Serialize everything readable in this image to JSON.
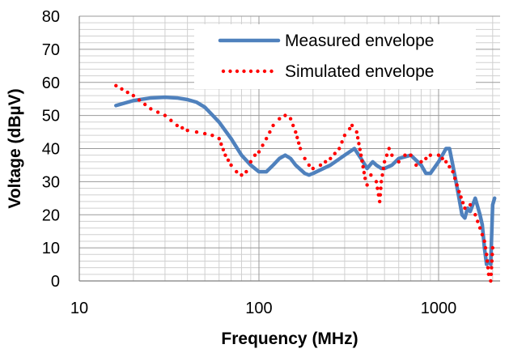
{
  "chart_data": {
    "type": "line",
    "title": "",
    "xlabel": "Frequency (MHz)",
    "ylabel": "Voltage (dBµV)",
    "x_scale": "log",
    "xlim": [
      10,
      2200
    ],
    "ylim": [
      0,
      80
    ],
    "x_major_ticks": [
      10,
      100,
      1000
    ],
    "x_tick_labels": [
      "10",
      "100",
      "1000"
    ],
    "y_ticks": [
      0,
      10,
      20,
      30,
      40,
      50,
      60,
      70,
      80
    ],
    "y_tick_labels": [
      "0",
      "10",
      "20",
      "30",
      "40",
      "50",
      "60",
      "70",
      "80"
    ],
    "grid": "major and minor",
    "legend_position": "top-right",
    "series": [
      {
        "name": "Measured envelope",
        "style": "solid",
        "color": "#4F81BD",
        "x": [
          16,
          20,
          25,
          30,
          35,
          40,
          45,
          50,
          60,
          70,
          80,
          90,
          100,
          110,
          120,
          130,
          140,
          150,
          160,
          180,
          190,
          200,
          250,
          300,
          340,
          370,
          400,
          430,
          450,
          480,
          500,
          550,
          600,
          700,
          800,
          850,
          900,
          1000,
          1050,
          1100,
          1150,
          1200,
          1250,
          1300,
          1350,
          1400,
          1450,
          1500,
          1600,
          1700,
          1750,
          1800,
          1850,
          1900,
          1950,
          2000,
          2050
        ],
        "y": [
          53,
          54.5,
          55.3,
          55.5,
          55.3,
          54.8,
          54,
          52.5,
          48,
          43,
          38,
          35,
          33,
          33,
          35,
          37,
          38,
          37,
          35,
          32.5,
          32,
          32.5,
          35,
          38,
          40,
          37,
          34,
          36,
          35,
          34,
          34,
          35,
          37,
          38,
          35,
          32.5,
          32.5,
          36,
          38,
          40,
          40,
          35,
          30,
          25,
          20,
          19,
          22,
          21,
          25,
          20,
          17,
          10,
          5,
          6,
          5,
          23,
          25
        ]
      },
      {
        "name": "Simulated envelope",
        "style": "dotted",
        "color": "#FF0000",
        "x": [
          16,
          20,
          25,
          30,
          35,
          40,
          45,
          50,
          55,
          60,
          65,
          70,
          75,
          80,
          85,
          90,
          95,
          100,
          110,
          120,
          130,
          140,
          150,
          160,
          170,
          180,
          190,
          200,
          220,
          250,
          280,
          300,
          320,
          330,
          350,
          370,
          390,
          400,
          420,
          450,
          470,
          480,
          500,
          530,
          550,
          600,
          650,
          700,
          750,
          800,
          850,
          900,
          1000,
          1050,
          1100,
          1200,
          1300,
          1400,
          1500,
          1600,
          1700,
          1800,
          1850,
          1900,
          1950,
          2000
        ],
        "y": [
          59,
          56,
          52,
          50,
          47,
          45.5,
          45,
          44.5,
          44,
          43,
          38,
          35,
          33,
          32,
          33,
          36,
          38,
          39,
          43,
          47,
          49,
          50,
          49,
          45,
          40,
          37,
          35,
          34,
          35,
          37,
          40,
          44,
          46,
          47,
          45,
          38,
          31,
          29,
          32,
          30,
          24,
          30,
          36,
          40,
          38,
          36,
          38,
          38,
          35,
          36,
          37,
          38,
          38,
          37,
          36,
          33,
          27,
          22,
          23,
          20,
          16,
          12,
          8,
          2,
          0,
          10
        ]
      }
    ]
  }
}
